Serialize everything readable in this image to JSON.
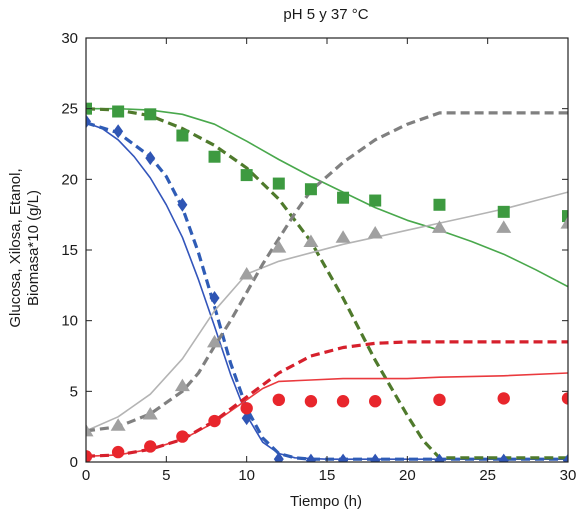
{
  "chart_data": {
    "type": "line",
    "title": "pH 5 y 37 °C",
    "xlabel": "Tiempo (h)",
    "ylabel_lines": [
      "Glucosa, Xilosa, Etanol,",
      "Biomasa*10 (g/L)"
    ],
    "xlim": [
      0,
      30
    ],
    "ylim": [
      0,
      30
    ],
    "xticks": [
      0,
      5,
      10,
      15,
      20,
      25,
      30
    ],
    "yticks": [
      0,
      5,
      10,
      15,
      20,
      25,
      30
    ],
    "grid": false,
    "series": [
      {
        "kind": "markers",
        "marker": "diamond",
        "color": "#2f55b4",
        "points": [
          [
            0,
            24.1
          ],
          [
            2,
            23.4
          ],
          [
            4,
            21.5
          ],
          [
            6,
            18.2
          ],
          [
            8,
            11.6
          ],
          [
            10,
            3.1
          ],
          [
            12,
            0.2
          ],
          [
            14,
            0.1
          ],
          [
            16,
            0.1
          ],
          [
            18,
            0.1
          ],
          [
            22,
            0.1
          ],
          [
            26,
            0.1
          ],
          [
            30,
            0.1
          ]
        ]
      },
      {
        "kind": "markers",
        "marker": "square",
        "color": "#3d9a40",
        "points": [
          [
            0,
            25.0
          ],
          [
            2,
            24.8
          ],
          [
            4,
            24.6
          ],
          [
            6,
            23.1
          ],
          [
            8,
            21.6
          ],
          [
            10,
            20.3
          ],
          [
            12,
            19.7
          ],
          [
            14,
            19.3
          ],
          [
            16,
            18.7
          ],
          [
            18,
            18.5
          ],
          [
            22,
            18.2
          ],
          [
            26,
            17.7
          ],
          [
            30,
            17.4
          ]
        ]
      },
      {
        "kind": "markers",
        "marker": "triangle",
        "color": "#a0a0a0",
        "points": [
          [
            0,
            2.2
          ],
          [
            2,
            2.6
          ],
          [
            4,
            3.4
          ],
          [
            6,
            5.4
          ],
          [
            8,
            8.5
          ],
          [
            10,
            13.3
          ],
          [
            12,
            15.2
          ],
          [
            14,
            15.6
          ],
          [
            16,
            15.9
          ],
          [
            18,
            16.2
          ],
          [
            22,
            16.6
          ],
          [
            26,
            16.6
          ],
          [
            30,
            16.9
          ]
        ]
      },
      {
        "kind": "markers",
        "marker": "circle",
        "color": "#e8262c",
        "points": [
          [
            0,
            0.4
          ],
          [
            2,
            0.7
          ],
          [
            4,
            1.1
          ],
          [
            6,
            1.8
          ],
          [
            8,
            2.9
          ],
          [
            10,
            3.8
          ],
          [
            12,
            4.4
          ],
          [
            14,
            4.3
          ],
          [
            16,
            4.3
          ],
          [
            18,
            4.3
          ],
          [
            22,
            4.4
          ],
          [
            26,
            4.5
          ],
          [
            30,
            4.5
          ]
        ]
      },
      {
        "kind": "line",
        "style": "solid",
        "color": "#3355bb",
        "points": [
          [
            0,
            24.0
          ],
          [
            1,
            23.6
          ],
          [
            2,
            22.8
          ],
          [
            3,
            21.6
          ],
          [
            4,
            20.1
          ],
          [
            5,
            18.2
          ],
          [
            6,
            15.9
          ],
          [
            7,
            12.9
          ],
          [
            8,
            9.6
          ],
          [
            9,
            6.2
          ],
          [
            10,
            3.3
          ],
          [
            11,
            1.4
          ],
          [
            12,
            0.6
          ],
          [
            13,
            0.3
          ],
          [
            15,
            0.2
          ],
          [
            20,
            0.2
          ],
          [
            25,
            0.2
          ],
          [
            30,
            0.2
          ]
        ]
      },
      {
        "kind": "line",
        "style": "dashed",
        "color": "#2f5cb6",
        "points": [
          [
            0,
            24.0
          ],
          [
            2,
            23.3
          ],
          [
            4,
            21.6
          ],
          [
            5,
            20.2
          ],
          [
            6,
            18.0
          ],
          [
            7,
            14.8
          ],
          [
            8,
            11.0
          ],
          [
            9,
            7.0
          ],
          [
            10,
            3.8
          ],
          [
            11,
            1.7
          ],
          [
            12,
            0.6
          ],
          [
            13,
            0.3
          ],
          [
            14,
            0.2
          ],
          [
            20,
            0.2
          ],
          [
            25,
            0.2
          ],
          [
            30,
            0.2
          ]
        ]
      },
      {
        "kind": "line",
        "style": "solid",
        "color": "#49a84c",
        "points": [
          [
            0,
            25.0
          ],
          [
            2,
            25.0
          ],
          [
            4,
            24.9
          ],
          [
            6,
            24.6
          ],
          [
            8,
            23.9
          ],
          [
            10,
            22.7
          ],
          [
            12,
            21.4
          ],
          [
            14,
            20.2
          ],
          [
            16,
            19.1
          ],
          [
            18,
            18.0
          ],
          [
            20,
            17.1
          ],
          [
            22,
            16.4
          ],
          [
            24,
            15.6
          ],
          [
            26,
            14.7
          ],
          [
            28,
            13.6
          ],
          [
            30,
            12.4
          ]
        ]
      },
      {
        "kind": "line",
        "style": "dashed",
        "color": "#4f7a2c",
        "points": [
          [
            0,
            25.0
          ],
          [
            2,
            24.9
          ],
          [
            4,
            24.5
          ],
          [
            6,
            23.6
          ],
          [
            8,
            22.4
          ],
          [
            10,
            20.8
          ],
          [
            12,
            18.6
          ],
          [
            14,
            15.6
          ],
          [
            16,
            11.6
          ],
          [
            18,
            7.2
          ],
          [
            20,
            3.3
          ],
          [
            21,
            1.5
          ],
          [
            22,
            0.3
          ],
          [
            26,
            0.3
          ],
          [
            30,
            0.3
          ]
        ]
      },
      {
        "kind": "line",
        "style": "solid",
        "color": "#b4b4b4",
        "points": [
          [
            0,
            2.2
          ],
          [
            2,
            3.2
          ],
          [
            4,
            4.8
          ],
          [
            6,
            7.3
          ],
          [
            8,
            10.7
          ],
          [
            10,
            13.3
          ],
          [
            12,
            14.2
          ],
          [
            14,
            14.8
          ],
          [
            16,
            15.4
          ],
          [
            18,
            15.9
          ],
          [
            20,
            16.4
          ],
          [
            22,
            16.9
          ],
          [
            24,
            17.4
          ],
          [
            26,
            17.9
          ],
          [
            28,
            18.5
          ],
          [
            30,
            19.1
          ]
        ]
      },
      {
        "kind": "line",
        "style": "dashed",
        "color": "#808080",
        "points": [
          [
            0,
            2.2
          ],
          [
            2,
            2.5
          ],
          [
            4,
            3.4
          ],
          [
            6,
            5.0
          ],
          [
            7,
            6.3
          ],
          [
            8,
            8.2
          ],
          [
            9,
            10.0
          ],
          [
            10,
            12.0
          ],
          [
            11,
            14.0
          ],
          [
            12,
            15.8
          ],
          [
            13,
            17.6
          ],
          [
            14,
            19.2
          ],
          [
            16,
            21.2
          ],
          [
            18,
            22.8
          ],
          [
            20,
            23.9
          ],
          [
            22,
            24.7
          ],
          [
            26,
            24.7
          ],
          [
            30,
            24.7
          ]
        ]
      },
      {
        "kind": "line",
        "style": "solid",
        "color": "#ea3a3e",
        "points": [
          [
            0,
            0.4
          ],
          [
            2,
            0.5
          ],
          [
            4,
            0.9
          ],
          [
            6,
            1.6
          ],
          [
            8,
            2.8
          ],
          [
            9,
            3.6
          ],
          [
            10,
            4.4
          ],
          [
            11,
            5.2
          ],
          [
            12,
            5.7
          ],
          [
            14,
            5.8
          ],
          [
            16,
            5.9
          ],
          [
            18,
            5.9
          ],
          [
            20,
            5.9
          ],
          [
            22,
            6.0
          ],
          [
            26,
            6.1
          ],
          [
            30,
            6.3
          ]
        ]
      },
      {
        "kind": "line",
        "style": "dashed",
        "color": "#d6202c",
        "points": [
          [
            0,
            0.4
          ],
          [
            2,
            0.5
          ],
          [
            4,
            0.9
          ],
          [
            6,
            1.6
          ],
          [
            8,
            2.9
          ],
          [
            10,
            4.6
          ],
          [
            12,
            6.3
          ],
          [
            14,
            7.5
          ],
          [
            16,
            8.1
          ],
          [
            18,
            8.4
          ],
          [
            20,
            8.5
          ],
          [
            22,
            8.5
          ],
          [
            26,
            8.5
          ],
          [
            30,
            8.5
          ]
        ]
      }
    ]
  }
}
